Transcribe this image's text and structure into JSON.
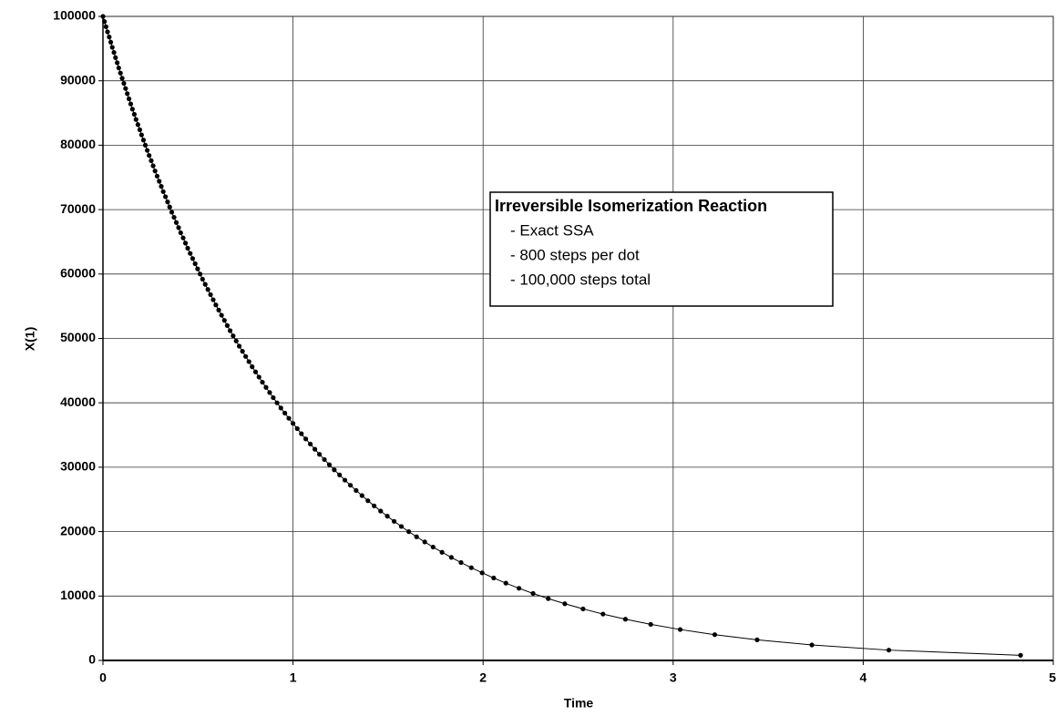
{
  "chart_data": {
    "type": "scatter",
    "xlabel": "Time",
    "ylabel": "X(1)",
    "annotations": [
      "Irreversible Isomerization Reaction",
      "- Exact SSA",
      "- 800 steps per dot",
      "- 100,000 steps total"
    ],
    "xlim": [
      0,
      5
    ],
    "ylim": [
      0,
      100000
    ],
    "xticks": [
      0,
      1,
      2,
      3,
      4,
      5
    ],
    "yticks": [
      0,
      10000,
      20000,
      30000,
      40000,
      50000,
      60000,
      70000,
      80000,
      90000,
      100000
    ],
    "grid": true,
    "series": [
      {
        "color": "#000000",
        "x": [
          0,
          0.008,
          0.016,
          0.024,
          0.033,
          0.041,
          0.049,
          0.058,
          0.066,
          0.075,
          0.083,
          0.092,
          0.101,
          0.11,
          0.119,
          0.128,
          0.137,
          0.146,
          0.155,
          0.165,
          0.174,
          0.184,
          0.194,
          0.203,
          0.213,
          0.223,
          0.233,
          0.243,
          0.254,
          0.264,
          0.274,
          0.285,
          0.296,
          0.307,
          0.317,
          0.329,
          0.34,
          0.351,
          0.362,
          0.374,
          0.386,
          0.398,
          0.409,
          0.422,
          0.434,
          0.446,
          0.459,
          0.472,
          0.485,
          0.498,
          0.511,
          0.524,
          0.538,
          0.552,
          0.566,
          0.58,
          0.594,
          0.609,
          0.624,
          0.639,
          0.654,
          0.669,
          0.685,
          0.701,
          0.717,
          0.734,
          0.751,
          0.768,
          0.785,
          0.803,
          0.821,
          0.839,
          0.858,
          0.877,
          0.896,
          0.916,
          0.936,
          0.957,
          0.978,
          1.0,
          1.022,
          1.044,
          1.067,
          1.091,
          1.115,
          1.139,
          1.165,
          1.191,
          1.217,
          1.245,
          1.273,
          1.302,
          1.332,
          1.363,
          1.394,
          1.427,
          1.461,
          1.496,
          1.532,
          1.57,
          1.609,
          1.65,
          1.693,
          1.737,
          1.784,
          1.833,
          1.884,
          1.938,
          1.995,
          2.056,
          2.12,
          2.189,
          2.263,
          2.343,
          2.43,
          2.526,
          2.631,
          2.749,
          2.882,
          3.037,
          3.219,
          3.442,
          3.73,
          4.135,
          4.828
        ],
        "values": [
          100000,
          99200,
          98400,
          97600,
          96800,
          96000,
          95200,
          94400,
          93600,
          92800,
          92000,
          91200,
          90400,
          89600,
          88800,
          88000,
          87200,
          86400,
          85600,
          84800,
          84000,
          83200,
          82400,
          81600,
          80800,
          80000,
          79200,
          78400,
          77600,
          76800,
          76000,
          75200,
          74400,
          73600,
          72800,
          72000,
          71200,
          70400,
          69600,
          68800,
          68000,
          67200,
          66400,
          65600,
          64800,
          64000,
          63200,
          62400,
          61600,
          60800,
          60000,
          59200,
          58400,
          57600,
          56800,
          56000,
          55200,
          54400,
          53600,
          52800,
          52000,
          51200,
          50400,
          49600,
          48800,
          48000,
          47200,
          46400,
          45600,
          44800,
          44000,
          43200,
          42400,
          41600,
          40800,
          40000,
          39200,
          38400,
          37600,
          36800,
          36000,
          35200,
          34400,
          33600,
          32800,
          32000,
          31200,
          30400,
          29600,
          28800,
          28000,
          27200,
          26400,
          25600,
          24800,
          24000,
          23200,
          22400,
          21600,
          20800,
          20000,
          19200,
          18400,
          17600,
          16800,
          16000,
          15200,
          14400,
          13600,
          12800,
          12000,
          11200,
          10400,
          9600,
          8800,
          8000,
          7200,
          6400,
          5600,
          4800,
          4000,
          3200,
          2400,
          1600,
          800
        ]
      }
    ]
  }
}
